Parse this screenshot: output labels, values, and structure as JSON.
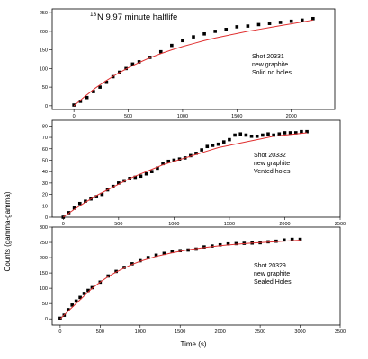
{
  "figure": {
    "ylabel": "Counts (gamma-gamma)",
    "xlabel": "Time (s)",
    "title_sup": "13",
    "title_main": "N 9.97 minute halflife"
  },
  "chart_data": [
    {
      "type": "scatter",
      "annotation": [
        "Shot 20331",
        "new graphite",
        "Solid no holes"
      ],
      "xlim": [
        -200,
        2400
      ],
      "ylim": [
        -10,
        260
      ],
      "xticks": [
        0,
        500,
        1000,
        1500,
        2000
      ],
      "yticks": [
        0,
        50,
        100,
        150,
        200,
        250
      ],
      "data_color": "#000000",
      "fit_color": "#e03030",
      "x": [
        0,
        60,
        120,
        180,
        240,
        300,
        360,
        420,
        480,
        540,
        600,
        700,
        800,
        900,
        1000,
        1100,
        1200,
        1300,
        1400,
        1500,
        1600,
        1700,
        1800,
        1900,
        2000,
        2100,
        2200
      ],
      "y": [
        2,
        12,
        22,
        38,
        50,
        63,
        78,
        90,
        100,
        112,
        118,
        130,
        145,
        162,
        175,
        185,
        193,
        200,
        205,
        212,
        214,
        218,
        221,
        224,
        227,
        230,
        234
      ],
      "fit_x": [
        0,
        100,
        200,
        300,
        400,
        500,
        600,
        700,
        800,
        900,
        1000,
        1100,
        1200,
        1300,
        1400,
        1500,
        1600,
        1700,
        1800,
        1900,
        2000,
        2100,
        2200
      ],
      "fit_y": [
        0,
        25,
        48,
        68,
        86,
        102,
        116,
        129,
        140,
        150,
        159,
        167,
        175,
        182,
        188,
        194,
        200,
        205,
        210,
        215,
        220,
        225,
        230
      ]
    },
    {
      "type": "scatter",
      "annotation": [
        "Shot 20332",
        "new graphite",
        "Vented holes"
      ],
      "xlim": [
        -100,
        2500
      ],
      "ylim": [
        0,
        85
      ],
      "xticks": [
        0,
        500,
        1000,
        1500,
        2000,
        2500
      ],
      "yticks": [
        0,
        10,
        20,
        30,
        40,
        50,
        60,
        70,
        80
      ],
      "data_color": "#000000",
      "fit_color": "#e03030",
      "x": [
        0,
        50,
        100,
        150,
        200,
        250,
        300,
        350,
        400,
        450,
        500,
        550,
        600,
        650,
        700,
        750,
        800,
        850,
        900,
        950,
        1000,
        1050,
        1100,
        1150,
        1200,
        1250,
        1300,
        1350,
        1400,
        1450,
        1500,
        1550,
        1600,
        1650,
        1700,
        1750,
        1800,
        1850,
        1900,
        1950,
        2000,
        2050,
        2100,
        2150,
        2200
      ],
      "y": [
        0,
        4,
        8,
        12,
        14,
        16,
        18,
        20,
        24,
        27,
        30,
        32,
        34,
        35,
        36,
        38,
        40,
        43,
        47,
        49,
        50,
        51,
        52,
        54,
        56,
        59,
        62,
        63,
        64,
        66,
        68,
        72,
        73,
        72,
        71,
        71,
        72,
        73,
        72,
        73,
        74,
        74,
        74,
        75,
        75
      ],
      "fit_x": [
        0,
        100,
        200,
        300,
        400,
        500,
        600,
        700,
        800,
        900,
        1000,
        1100,
        1200,
        1300,
        1400,
        1500,
        1600,
        1700,
        1800,
        1900,
        2000,
        2100,
        2200
      ],
      "fit_y": [
        0,
        7,
        13,
        19,
        24,
        29,
        34,
        38,
        42,
        46,
        49,
        52,
        55,
        58,
        61,
        63,
        65,
        67,
        69,
        71,
        72,
        73,
        74
      ]
    },
    {
      "type": "scatter",
      "annotation": [
        "Shot 20329",
        "new graphite",
        "Sealed Holes"
      ],
      "xlim": [
        -100,
        3500
      ],
      "ylim": [
        -20,
        300
      ],
      "xticks": [
        0,
        500,
        1000,
        1500,
        2000,
        2500,
        3000,
        3500
      ],
      "yticks": [
        0,
        50,
        100,
        150,
        200,
        250,
        300
      ],
      "data_color": "#000000",
      "fit_color": "#e03030",
      "x": [
        0,
        50,
        100,
        150,
        200,
        250,
        300,
        350,
        400,
        500,
        600,
        700,
        800,
        900,
        1000,
        1100,
        1200,
        1300,
        1400,
        1500,
        1600,
        1700,
        1800,
        1900,
        2000,
        2100,
        2200,
        2300,
        2400,
        2500,
        2600,
        2700,
        2800,
        2900,
        3000
      ],
      "y": [
        2,
        12,
        30,
        45,
        58,
        70,
        83,
        93,
        102,
        120,
        140,
        155,
        168,
        180,
        190,
        200,
        208,
        214,
        220,
        223,
        225,
        228,
        235,
        238,
        242,
        245,
        246,
        247,
        248,
        249,
        252,
        254,
        258,
        260,
        260
      ],
      "fit_x": [
        0,
        100,
        200,
        300,
        400,
        500,
        600,
        700,
        800,
        900,
        1000,
        1200,
        1400,
        1600,
        1800,
        2000,
        2200,
        2400,
        2600,
        2800,
        3000
      ],
      "fit_y": [
        0,
        25,
        50,
        75,
        100,
        120,
        138,
        153,
        166,
        178,
        188,
        204,
        216,
        226,
        233,
        239,
        244,
        248,
        251,
        254,
        257
      ]
    }
  ]
}
